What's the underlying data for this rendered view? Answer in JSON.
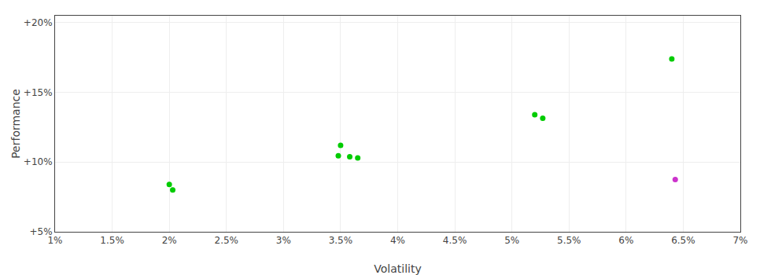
{
  "chart_data": {
    "type": "scatter",
    "xlabel": "Volatility",
    "ylabel": "Performance",
    "xlim": [
      0.01,
      0.07
    ],
    "ylim": [
      0.05,
      0.205
    ],
    "xticks": [
      {
        "value": 0.01,
        "label": "1%"
      },
      {
        "value": 0.015,
        "label": "1.5%"
      },
      {
        "value": 0.02,
        "label": "2%"
      },
      {
        "value": 0.025,
        "label": "2.5%"
      },
      {
        "value": 0.03,
        "label": "3%"
      },
      {
        "value": 0.035,
        "label": "3.5%"
      },
      {
        "value": 0.04,
        "label": "4%"
      },
      {
        "value": 0.045,
        "label": "4.5%"
      },
      {
        "value": 0.05,
        "label": "5%"
      },
      {
        "value": 0.055,
        "label": "5.5%"
      },
      {
        "value": 0.06,
        "label": "6%"
      },
      {
        "value": 0.065,
        "label": "6.5%"
      },
      {
        "value": 0.07,
        "label": "7%"
      }
    ],
    "yticks": [
      {
        "value": 0.05,
        "label": "+5%"
      },
      {
        "value": 0.1,
        "label": "+10%"
      },
      {
        "value": 0.15,
        "label": "+15%"
      },
      {
        "value": 0.2,
        "label": "+20%"
      }
    ],
    "grid": true,
    "series": [
      {
        "color": "#00cc00",
        "x": [
          0.02,
          0.0203,
          0.035,
          0.0348,
          0.0358,
          0.0365,
          0.052,
          0.0527,
          0.064
        ],
        "values": [
          0.084,
          0.08,
          0.112,
          0.1045,
          0.1038,
          0.103,
          0.134,
          0.1315,
          0.174
        ]
      },
      {
        "color": "#cc33cc",
        "x": [
          0.0643
        ],
        "values": [
          0.0875
        ]
      }
    ]
  }
}
